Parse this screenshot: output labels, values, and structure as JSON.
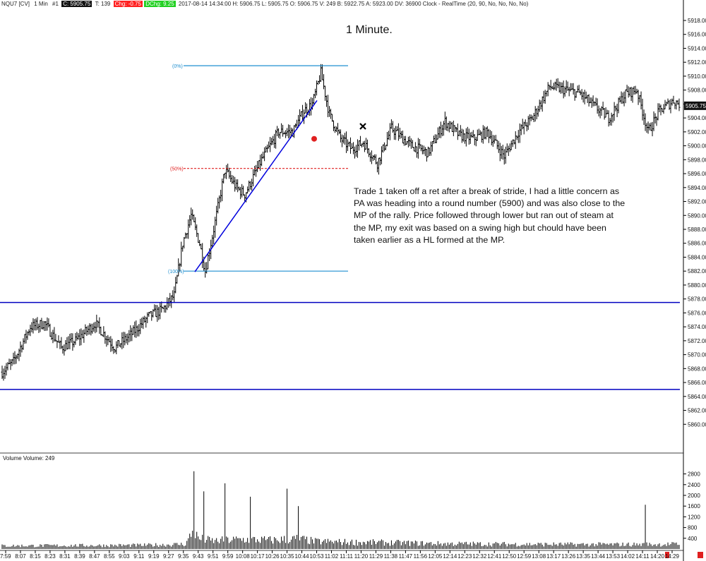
{
  "header": {
    "symbol": "NQU7 [CV]",
    "period": "1 Min",
    "pane": "#1",
    "close": "C: 5905.75",
    "ticks": "T: 139",
    "chg": "Chg: -0.75",
    "dchg": "DChg: 9.25",
    "info": "2017-08-14 14:34:00  H: 5906.75  L: 5905.75  O: 5906.75  V: 249  B: 5922.75  A: 5923.00  DV: 36900  Clock - RealTime  (20, 90, No, No, No, No)"
  },
  "title": "1 Minute.",
  "annotation": "Trade 1 taken off a ret after a break of stride, I had a little concern as PA was heading into a round number (5900) and was also close to the MP of the rally.  Price followed through lower but ran out of steam at the MP, my exit was based on a swing high but chould have been taken earlier as a HL formed at the MP.",
  "volume_label": "Volume  Volume: 249",
  "colors": {
    "bars": "#000000",
    "fib": "#1f8fd0",
    "fib_mid": "#e02020",
    "hlines": "#0000c0",
    "trend": "#0000dd",
    "entry": "#e02020",
    "exit": "#000000",
    "price_tag": "#111111"
  },
  "chart_data": {
    "type": "ohlc",
    "title": "1 Minute.",
    "x_tick_labels": [
      "7:59",
      "8:07",
      "8:15",
      "8:23",
      "8:31",
      "8:39",
      "8:47",
      "8:55",
      "9:03",
      "9:11",
      "9:19",
      "9:27",
      "9:35",
      "9:43",
      "9:51",
      "9:59",
      "10:08",
      "10:17",
      "10:26",
      "10:35",
      "10:44",
      "10:53",
      "11:02",
      "11:11",
      "11:20",
      "11:29",
      "11:38",
      "11:47",
      "11:56",
      "12:05",
      "12:14",
      "12:23",
      "12:32",
      "12:41",
      "12:50",
      "12:59",
      "13:08",
      "13:17",
      "13:26",
      "13:35",
      "13:44",
      "13:53",
      "14:02",
      "14:11",
      "14:20",
      "14:29"
    ],
    "price_axis": {
      "min": 5858,
      "max": 5918,
      "ticks": [
        "5918.00",
        "5916.00",
        "5914.00",
        "5912.00",
        "5910.00",
        "5908.00",
        "5906.00",
        "5904.00",
        "5902.00",
        "5900.00",
        "5898.00",
        "5896.00",
        "5894.00",
        "5892.00",
        "5890.00",
        "5888.00",
        "5886.00",
        "5884.00",
        "5882.00",
        "5880.00",
        "5878.00",
        "5876.00",
        "5874.00",
        "5872.00",
        "5870.00",
        "5868.00",
        "5866.00",
        "5864.00",
        "5862.00",
        "5860.00"
      ]
    },
    "last_price": "5905.75",
    "volume_axis": {
      "min": 0,
      "max": 3000,
      "ticks": [
        "2800",
        "2400",
        "2000",
        "1600",
        "1200",
        "800",
        "400"
      ]
    },
    "price_anchors": [
      [
        0,
        5867.5
      ],
      [
        8,
        5869
      ],
      [
        20,
        5874
      ],
      [
        30,
        5874.5
      ],
      [
        42,
        5871
      ],
      [
        52,
        5872
      ],
      [
        66,
        5874.5
      ],
      [
        80,
        5871
      ],
      [
        92,
        5873
      ],
      [
        104,
        5875.5
      ],
      [
        114,
        5876.5
      ],
      [
        122,
        5878.5
      ],
      [
        128,
        5886
      ],
      [
        134,
        5890
      ],
      [
        140,
        5886
      ],
      [
        144,
        5882
      ],
      [
        150,
        5888
      ],
      [
        158,
        5896.5
      ],
      [
        166,
        5894
      ],
      [
        172,
        5893
      ],
      [
        184,
        5898
      ],
      [
        196,
        5902
      ],
      [
        206,
        5902
      ],
      [
        214,
        5905
      ],
      [
        220,
        5906
      ],
      [
        226,
        5910.5
      ],
      [
        232,
        5904.5
      ],
      [
        240,
        5901
      ],
      [
        248,
        5899.5
      ],
      [
        256,
        5900.5
      ],
      [
        266,
        5897.5
      ],
      [
        276,
        5902.5
      ],
      [
        290,
        5900
      ],
      [
        302,
        5899
      ],
      [
        314,
        5903.5
      ],
      [
        324,
        5901.5
      ],
      [
        334,
        5901
      ],
      [
        344,
        5902
      ],
      [
        356,
        5898.5
      ],
      [
        366,
        5902
      ],
      [
        376,
        5904
      ],
      [
        388,
        5908.5
      ],
      [
        400,
        5908
      ],
      [
        410,
        5907.5
      ],
      [
        418,
        5906
      ],
      [
        430,
        5904
      ],
      [
        442,
        5907.5
      ],
      [
        450,
        5908
      ],
      [
        458,
        5902
      ],
      [
        466,
        5905
      ],
      [
        476,
        5906.5
      ],
      [
        480,
        5906
      ]
    ],
    "volume_profile": [
      [
        0,
        120
      ],
      [
        100,
        140
      ],
      [
        130,
        180
      ],
      [
        135,
        620
      ],
      [
        140,
        380
      ],
      [
        150,
        300
      ],
      [
        170,
        360
      ],
      [
        190,
        330
      ],
      [
        210,
        380
      ],
      [
        222,
        280
      ],
      [
        240,
        260
      ],
      [
        270,
        240
      ],
      [
        310,
        200
      ],
      [
        360,
        180
      ],
      [
        400,
        170
      ],
      [
        450,
        170
      ],
      [
        480,
        180
      ]
    ],
    "volume_spikes": [
      [
        136,
        2900
      ],
      [
        143,
        2150
      ],
      [
        158,
        2450
      ],
      [
        176,
        1950
      ],
      [
        202,
        2250
      ],
      [
        210,
        1600
      ],
      [
        456,
        1650
      ]
    ],
    "levels": {
      "fib_0": {
        "label": "(0%)",
        "price": 5911.5
      },
      "fib_50": {
        "label": "(50%)",
        "price": 5896.75
      },
      "fib_100": {
        "label": "(100%)",
        "price": 5882
      },
      "upper_line": 5877.5,
      "lower_line": 5865
    },
    "trendline": {
      "start": [
        5881.9
      ],
      "end": [
        5906.5
      ]
    },
    "entry_marker": {
      "price": 5901,
      "symbol": "red-dot"
    },
    "exit_marker": {
      "price": 5902.8,
      "symbol": "x"
    }
  }
}
